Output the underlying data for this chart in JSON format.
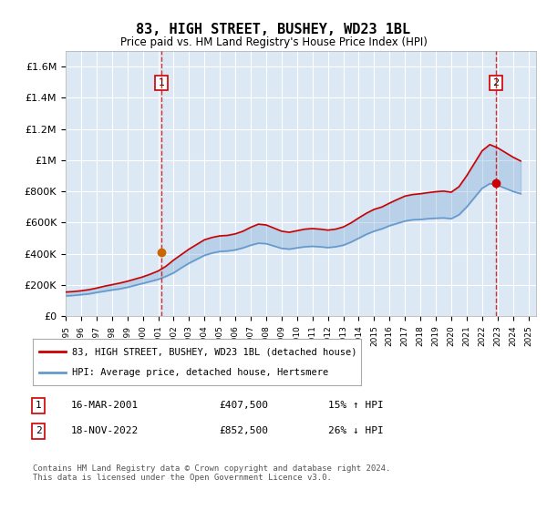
{
  "title": "83, HIGH STREET, BUSHEY, WD23 1BL",
  "subtitle": "Price paid vs. HM Land Registry's House Price Index (HPI)",
  "ylabel": "",
  "background_color": "#dce9f5",
  "plot_bg_color": "#dce9f5",
  "fig_bg_color": "#ffffff",
  "grid_color": "#ffffff",
  "ylim": [
    0,
    1700000
  ],
  "yticks": [
    0,
    200000,
    400000,
    600000,
    800000,
    1000000,
    1200000,
    1400000,
    1600000
  ],
  "ytick_labels": [
    "£0",
    "£200K",
    "£400K",
    "£600K",
    "£800K",
    "£1M",
    "£1.2M",
    "£1.4M",
    "£1.6M"
  ],
  "xlim_start": 1995.0,
  "xlim_end": 2025.5,
  "transaction1_x": 2001.21,
  "transaction1_y": 407500,
  "transaction2_x": 2022.88,
  "transaction2_y": 852500,
  "transaction1_label": "1",
  "transaction2_label": "2",
  "line1_color": "#cc0000",
  "line2_color": "#6699cc",
  "legend1_text": "83, HIGH STREET, BUSHEY, WD23 1BL (detached house)",
  "legend2_text": "HPI: Average price, detached house, Hertsmere",
  "table_row1": [
    "1",
    "16-MAR-2001",
    "£407,500",
    "15% ↑ HPI"
  ],
  "table_row2": [
    "2",
    "18-NOV-2022",
    "£852,500",
    "26% ↓ HPI"
  ],
  "footer": "Contains HM Land Registry data © Crown copyright and database right 2024.\nThis data is licensed under the Open Government Licence v3.0.",
  "hpi_years": [
    1995.0,
    1995.5,
    1996.0,
    1996.5,
    1997.0,
    1997.5,
    1998.0,
    1998.5,
    1999.0,
    1999.5,
    2000.0,
    2000.5,
    2001.0,
    2001.5,
    2002.0,
    2002.5,
    2003.0,
    2003.5,
    2004.0,
    2004.5,
    2005.0,
    2005.5,
    2006.0,
    2006.5,
    2007.0,
    2007.5,
    2008.0,
    2008.5,
    2009.0,
    2009.5,
    2010.0,
    2010.5,
    2011.0,
    2011.5,
    2012.0,
    2012.5,
    2013.0,
    2013.5,
    2014.0,
    2014.5,
    2015.0,
    2015.5,
    2016.0,
    2016.5,
    2017.0,
    2017.5,
    2018.0,
    2018.5,
    2019.0,
    2019.5,
    2020.0,
    2020.5,
    2021.0,
    2021.5,
    2022.0,
    2022.5,
    2023.0,
    2023.5,
    2024.0,
    2024.5
  ],
  "hpi_values": [
    130000,
    133000,
    138000,
    143000,
    152000,
    160000,
    168000,
    175000,
    185000,
    198000,
    210000,
    223000,
    236000,
    255000,
    278000,
    310000,
    340000,
    365000,
    390000,
    405000,
    415000,
    418000,
    425000,
    438000,
    455000,
    468000,
    465000,
    450000,
    435000,
    430000,
    438000,
    445000,
    448000,
    445000,
    440000,
    445000,
    455000,
    475000,
    500000,
    525000,
    545000,
    560000,
    580000,
    595000,
    610000,
    618000,
    620000,
    625000,
    628000,
    630000,
    625000,
    650000,
    700000,
    760000,
    820000,
    850000,
    840000,
    820000,
    800000,
    785000
  ],
  "price_years": [
    1995.0,
    1995.5,
    1996.0,
    1996.5,
    1997.0,
    1997.5,
    1998.0,
    1998.5,
    1999.0,
    1999.5,
    2000.0,
    2000.5,
    2001.0,
    2001.5,
    2002.0,
    2002.5,
    2003.0,
    2003.5,
    2004.0,
    2004.5,
    2005.0,
    2005.5,
    2006.0,
    2006.5,
    2007.0,
    2007.5,
    2008.0,
    2008.5,
    2009.0,
    2009.5,
    2010.0,
    2010.5,
    2011.0,
    2011.5,
    2012.0,
    2012.5,
    2013.0,
    2013.5,
    2014.0,
    2014.5,
    2015.0,
    2015.5,
    2016.0,
    2016.5,
    2017.0,
    2017.5,
    2018.0,
    2018.5,
    2019.0,
    2019.5,
    2020.0,
    2020.5,
    2021.0,
    2021.5,
    2022.0,
    2022.5,
    2023.0,
    2023.5,
    2024.0,
    2024.5
  ],
  "price_values": [
    155000,
    158000,
    163000,
    170000,
    180000,
    192000,
    202000,
    212000,
    224000,
    238000,
    252000,
    270000,
    290000,
    320000,
    360000,
    395000,
    430000,
    460000,
    490000,
    505000,
    515000,
    518000,
    528000,
    545000,
    570000,
    590000,
    585000,
    565000,
    545000,
    538000,
    548000,
    558000,
    562000,
    558000,
    552000,
    558000,
    572000,
    598000,
    630000,
    660000,
    685000,
    700000,
    725000,
    748000,
    770000,
    780000,
    785000,
    792000,
    798000,
    802000,
    795000,
    830000,
    900000,
    980000,
    1060000,
    1100000,
    1080000,
    1050000,
    1020000,
    995000
  ]
}
